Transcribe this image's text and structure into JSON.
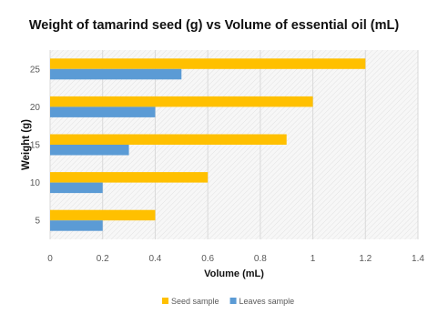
{
  "chart_data": {
    "type": "bar",
    "orientation": "horizontal",
    "title": "Weight of tamarind seed (g) vs Volume of essential oil (mL)",
    "xlabel": "Volume (mL)",
    "ylabel": "Weight (g)",
    "categories": [
      "5",
      "10",
      "15",
      "20",
      "25"
    ],
    "xlim": [
      0,
      1.4
    ],
    "xticks": [
      "0",
      "0.2",
      "0.4",
      "0.6",
      "0.8",
      "1",
      "1.2",
      "1.4"
    ],
    "series": [
      {
        "name": "Seed sample",
        "values": [
          0.4,
          0.6,
          0.9,
          1.0,
          1.2
        ],
        "color": "#FFC000"
      },
      {
        "name": "Leaves sample",
        "values": [
          0.2,
          0.2,
          0.3,
          0.4,
          0.5
        ],
        "color": "#5B9BD5"
      }
    ],
    "grid": true,
    "legend_position": "bottom"
  }
}
